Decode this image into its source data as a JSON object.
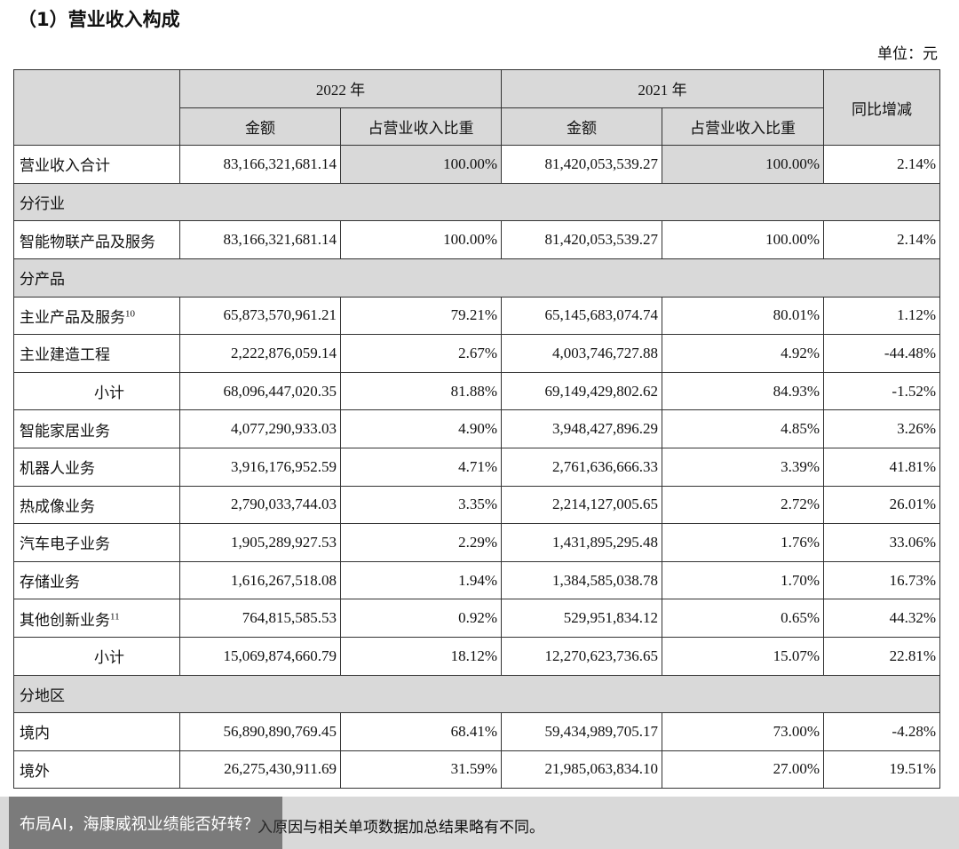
{
  "header": {
    "title": "（1）营业收入构成",
    "unit": "单位：元"
  },
  "table": {
    "columns": {
      "corner": "",
      "years": [
        "2022 年",
        "2021 年"
      ],
      "sub": [
        "金额",
        "占营业收入比重",
        "金额",
        "占营业收入比重"
      ],
      "change": "同比增减"
    },
    "rows": [
      {
        "label": "营业收入合计",
        "cells": [
          "83,166,321,681.14",
          "100.00%",
          "81,420,053,539.27",
          "100.00%",
          "2.14%"
        ]
      },
      {
        "section": "分行业"
      },
      {
        "label": "智能物联产品及服务",
        "cells": [
          "83,166,321,681.14",
          "100.00%",
          "81,420,053,539.27",
          "100.00%",
          "2.14%"
        ]
      },
      {
        "section": "分产品"
      },
      {
        "label": "主业产品及服务",
        "note": "10",
        "cells": [
          "65,873,570,961.21",
          "79.21%",
          "65,145,683,074.74",
          "80.01%",
          "1.12%"
        ]
      },
      {
        "label": "主业建造工程",
        "cells": [
          "2,222,876,059.14",
          "2.67%",
          "4,003,746,727.88",
          "4.92%",
          "-44.48%"
        ]
      },
      {
        "total_label": "小计",
        "cells": [
          "68,096,447,020.35",
          "81.88%",
          "69,149,429,802.62",
          "84.93%",
          "-1.52%"
        ]
      },
      {
        "label": "智能家居业务",
        "cells": [
          "4,077,290,933.03",
          "4.90%",
          "3,948,427,896.29",
          "4.85%",
          "3.26%"
        ]
      },
      {
        "label": "机器人业务",
        "cells": [
          "3,916,176,952.59",
          "4.71%",
          "2,761,636,666.33",
          "3.39%",
          "41.81%"
        ]
      },
      {
        "label": "热成像业务",
        "cells": [
          "2,790,033,744.03",
          "3.35%",
          "2,214,127,005.65",
          "2.72%",
          "26.01%"
        ]
      },
      {
        "label": "汽车电子业务",
        "cells": [
          "1,905,289,927.53",
          "2.29%",
          "1,431,895,295.48",
          "1.76%",
          "33.06%"
        ]
      },
      {
        "label": "存储业务",
        "cells": [
          "1,616,267,518.08",
          "1.94%",
          "1,384,585,038.78",
          "1.70%",
          "16.73%"
        ]
      },
      {
        "label": "其他创新业务",
        "note": "11",
        "cells": [
          "764,815,585.53",
          "0.92%",
          "529,951,834.12",
          "0.65%",
          "44.32%"
        ]
      },
      {
        "total_label": "小计",
        "cells": [
          "15,069,874,660.79",
          "18.12%",
          "12,270,623,736.65",
          "15.07%",
          "22.81%"
        ]
      },
      {
        "section": "分地区"
      },
      {
        "label": "境内",
        "cells": [
          "56,890,890,769.45",
          "68.41%",
          "59,434,989,705.17",
          "73.00%",
          "-4.28%"
        ]
      },
      {
        "label": "境外",
        "cells": [
          "26,275,430,911.69",
          "31.59%",
          "21,985,063,834.10",
          "27.00%",
          "19.51%"
        ]
      }
    ]
  },
  "note": "入原因与相关单项数据加总结果略有不同。",
  "caption": "布局AI，海康威视业绩能否好转？"
}
